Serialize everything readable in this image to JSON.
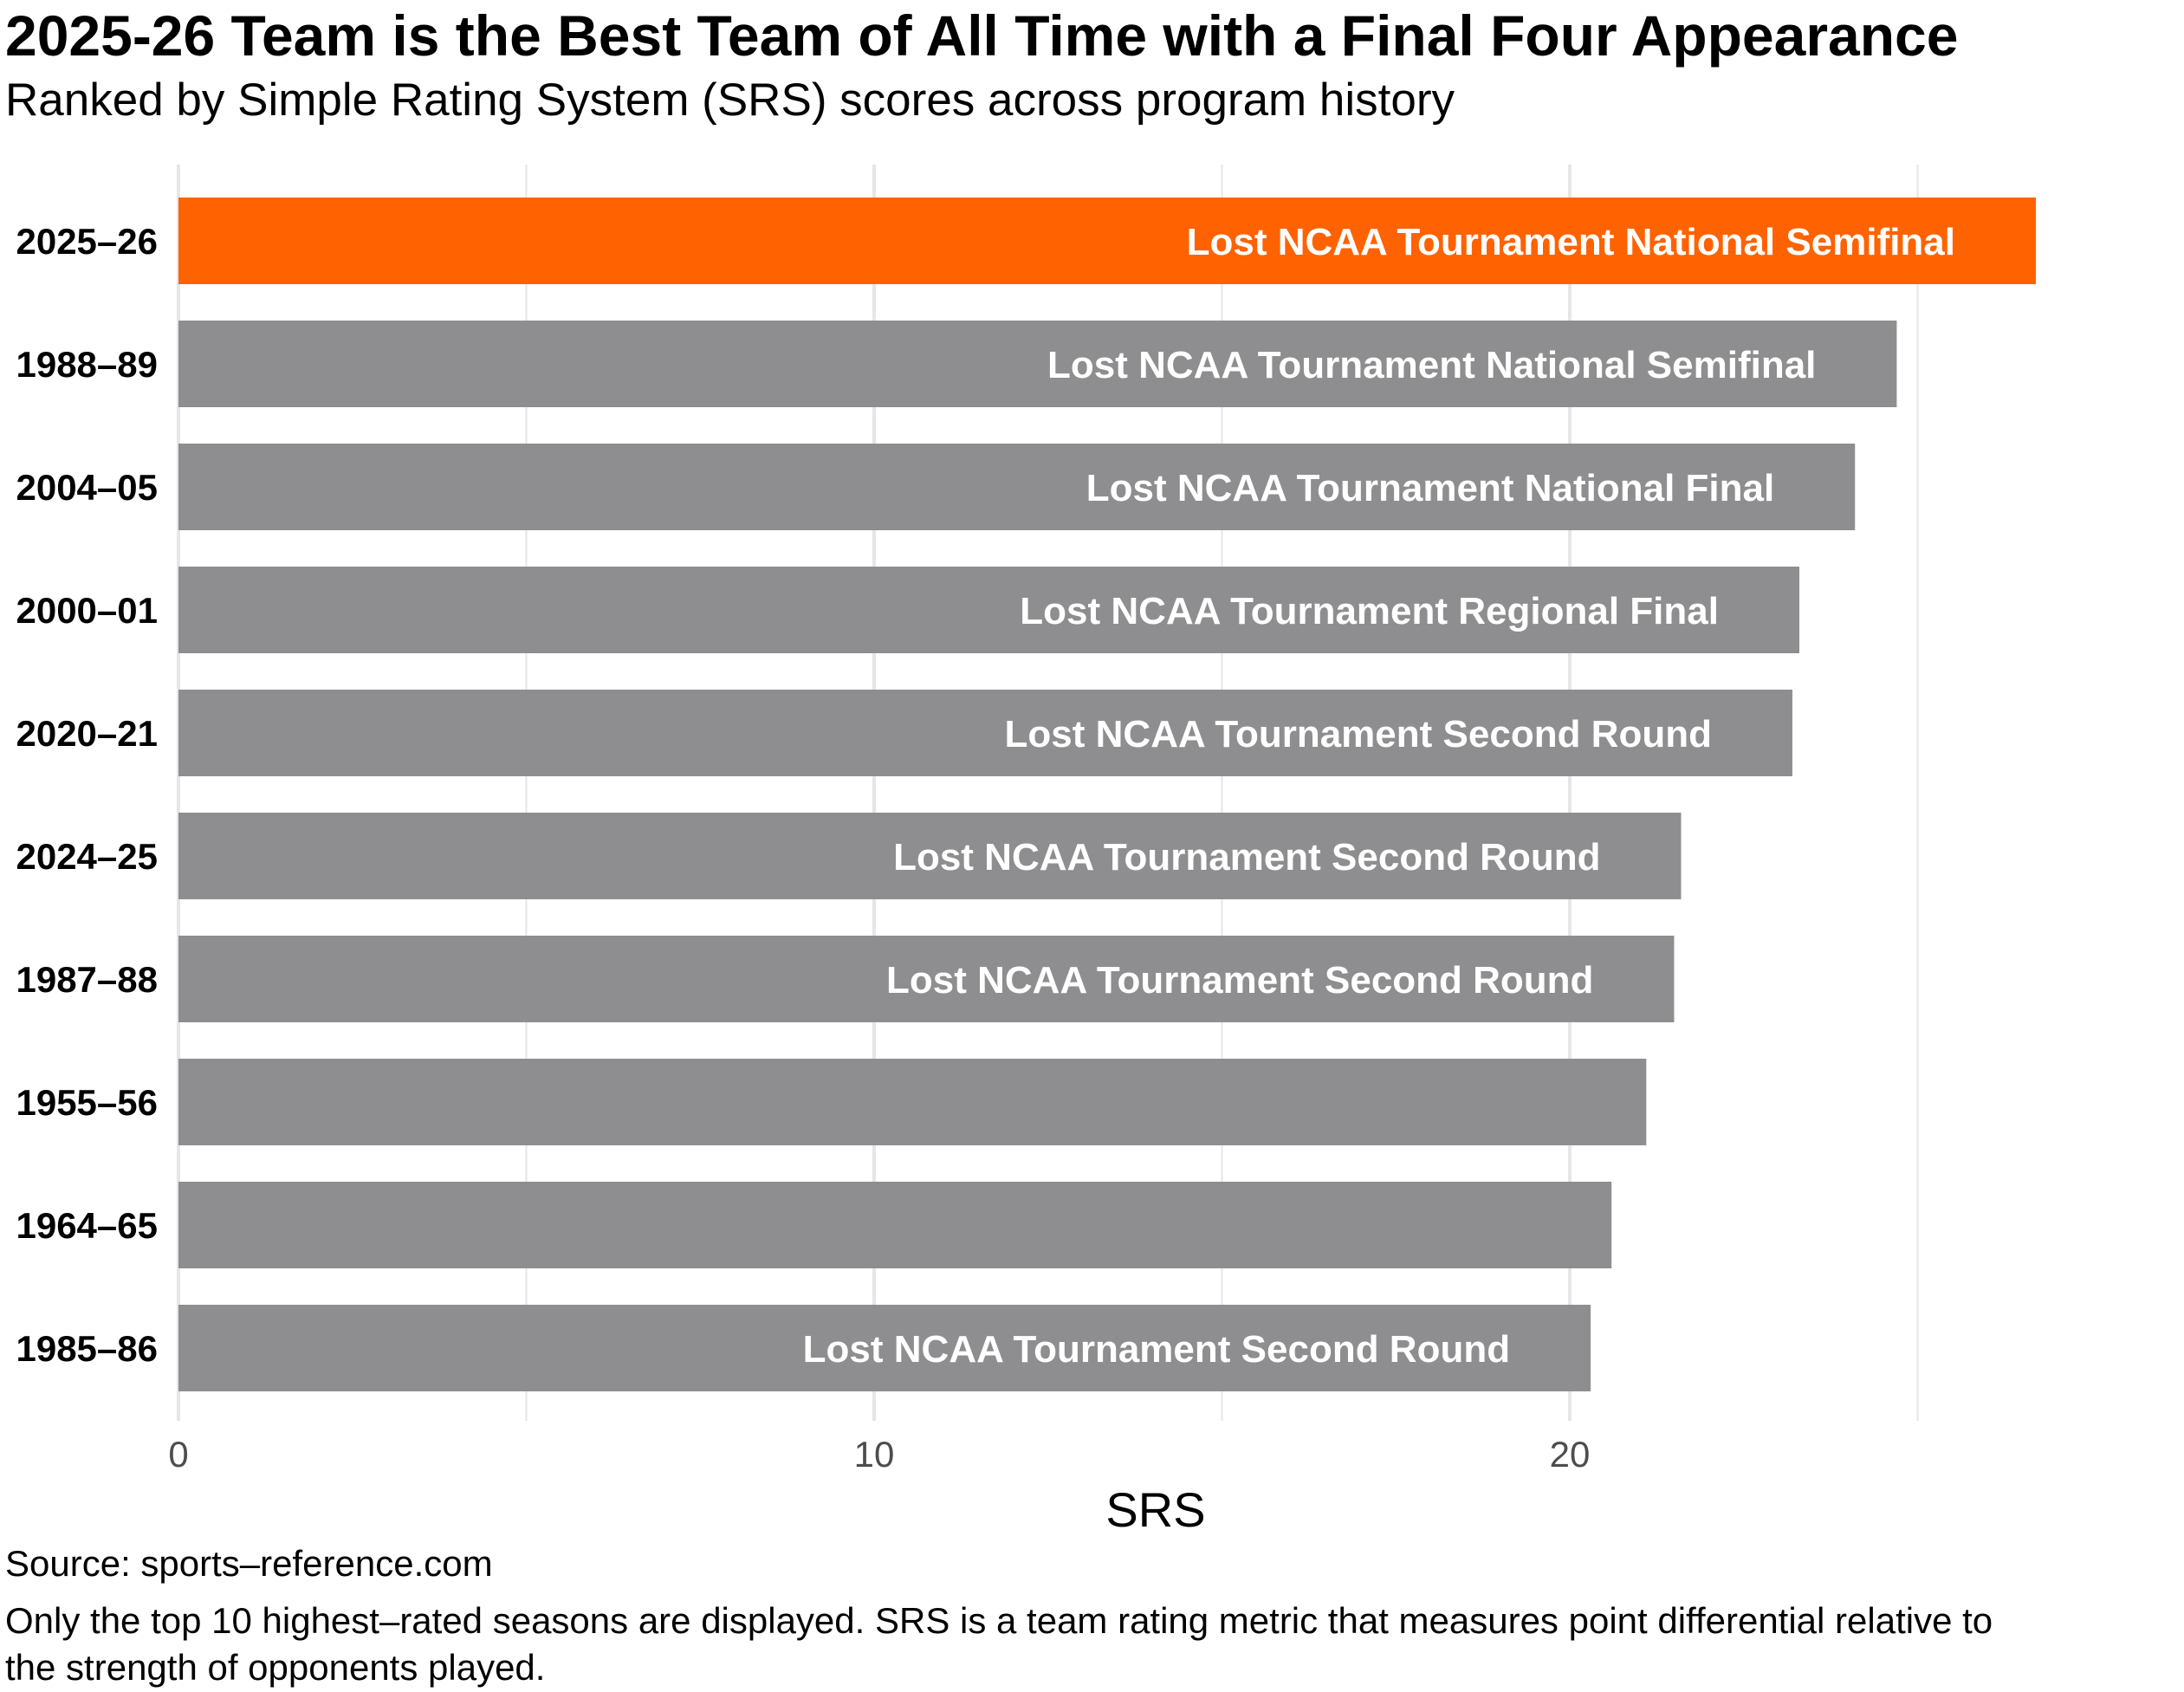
{
  "chart_data": {
    "type": "bar",
    "orientation": "horizontal",
    "title": "2025-26 Team is the Best Team of All Time with a Final Four Appearance",
    "subtitle": "Ranked by Simple Rating System (SRS) scores across program history",
    "xlabel": "SRS",
    "ylabel": "",
    "xlim": [
      0,
      26
    ],
    "x_ticks": [
      0,
      10,
      20
    ],
    "grid": true,
    "categories": [
      "2025–26",
      "1988–89",
      "2004–05",
      "2000–01",
      "2020–21",
      "2024–25",
      "1987–88",
      "1955–56",
      "1964–65",
      "1985–86"
    ],
    "values": [
      26.7,
      24.7,
      24.1,
      23.3,
      23.2,
      21.6,
      21.5,
      21.1,
      20.6,
      20.3
    ],
    "bar_labels": [
      "Lost NCAA Tournament National Semifinal",
      "Lost NCAA Tournament National Semifinal",
      "Lost NCAA Tournament National Final",
      "Lost NCAA Tournament Regional Final",
      "Lost NCAA Tournament Second Round",
      "Lost NCAA Tournament Second Round",
      "Lost NCAA Tournament Second Round",
      "",
      "",
      "Lost NCAA Tournament Second Round"
    ],
    "highlight_category": "2025–26",
    "colors": {
      "highlight": "#FF6200",
      "default": "#8E8E90",
      "bar_label": "#FFFFFF",
      "grid": "#E6E6E6"
    },
    "source": "Source: sports–reference.com",
    "caption_lines": [
      "Only the top 10 highest–rated seasons are displayed. SRS is a team rating metric that measures point differential relative to",
      "the strength of opponents played."
    ]
  }
}
